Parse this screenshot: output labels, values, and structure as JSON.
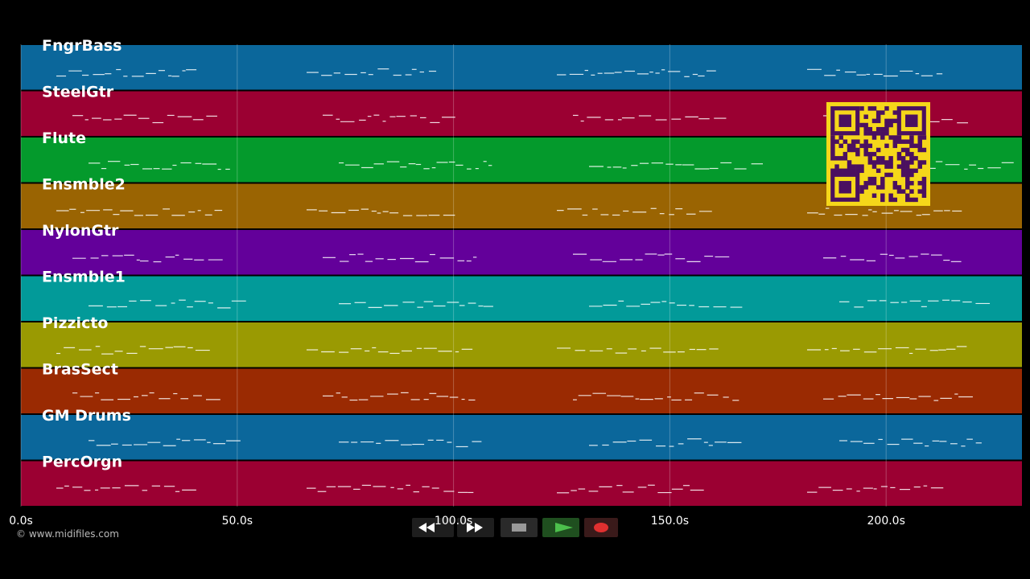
{
  "tracks": [
    {
      "name": "FngrBass",
      "color": "#0b679b"
    },
    {
      "name": "SteelGtr",
      "color": "#9b0032"
    },
    {
      "name": "Flute",
      "color": "#049a2c"
    },
    {
      "name": "Ensmble2",
      "color": "#9a6402"
    },
    {
      "name": "NylonGtr",
      "color": "#63009a"
    },
    {
      "name": "Ensmble1",
      "color": "#029a99"
    },
    {
      "name": "Pizzicto",
      "color": "#9a9a02"
    },
    {
      "name": "BrasSect",
      "color": "#9a2a02"
    },
    {
      "name": "GM Drums",
      "color": "#0b679b"
    },
    {
      "name": "PercOrgn",
      "color": "#9b0032"
    }
  ],
  "timeline": {
    "xlim": [
      0,
      231.4
    ],
    "ticks": [
      {
        "value": 0,
        "label": "0.0s"
      },
      {
        "value": 50,
        "label": "50.0s"
      },
      {
        "value": 100,
        "label": "100.0s"
      },
      {
        "value": 150,
        "label": "150.0s"
      },
      {
        "value": 200,
        "label": "200.0s"
      }
    ]
  },
  "footer": {
    "credit": "© www.midifiles.com"
  }
}
